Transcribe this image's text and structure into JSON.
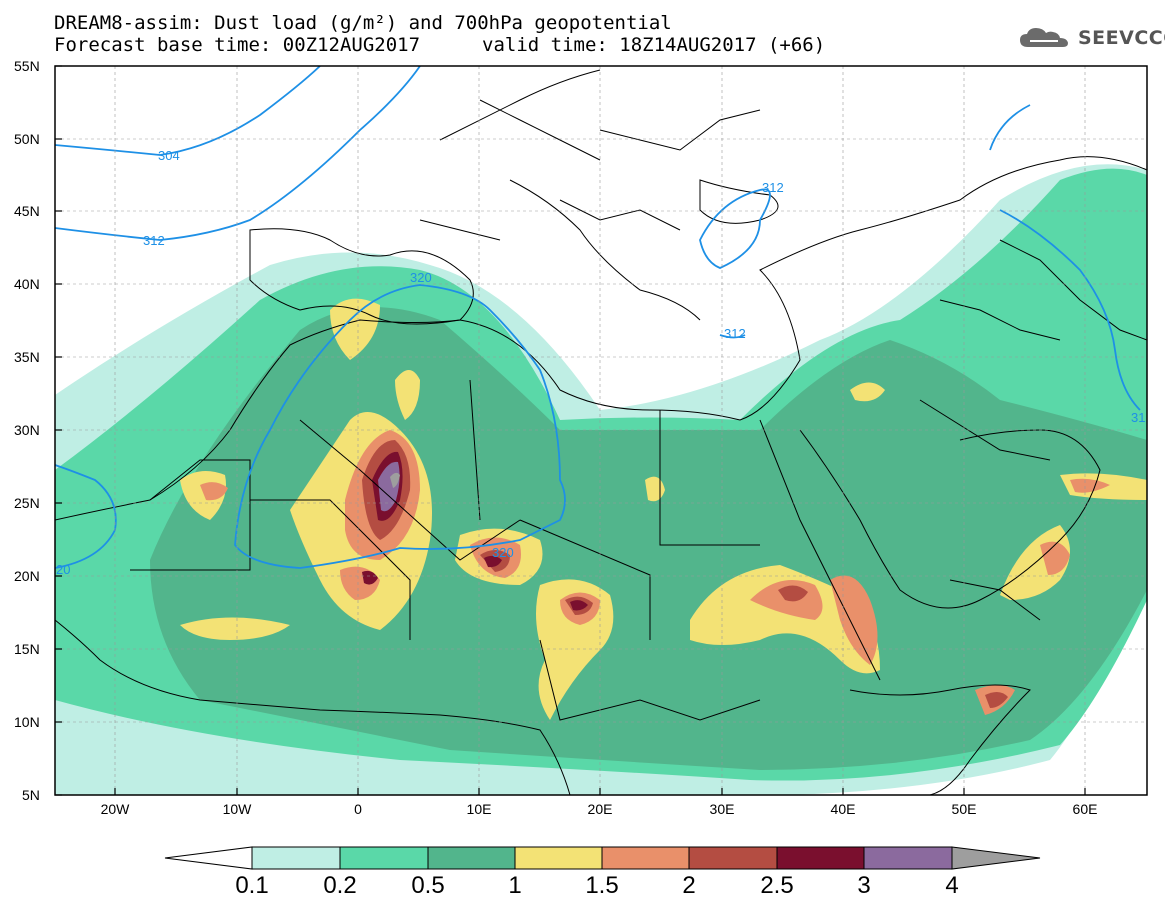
{
  "header": {
    "title_line1": "DREAM8-assim: Dust load (g/m²) and 700hPa geopotential",
    "title_line2_left": "Forecast base time: 00Z12AUG2017",
    "title_line2_right": "valid time: 18Z14AUG2017 (+66)",
    "logo_text": "SEEVCCC"
  },
  "map": {
    "lat_labels": [
      "55N",
      "50N",
      "45N",
      "40N",
      "35N",
      "30N",
      "25N",
      "20N",
      "15N",
      "10N",
      "5N"
    ],
    "lon_labels": [
      "20W",
      "10W",
      "0",
      "10E",
      "20E",
      "30E",
      "40E",
      "50E",
      "60E"
    ],
    "contours": [
      {
        "label": "304"
      },
      {
        "label": "312"
      },
      {
        "label": "312"
      },
      {
        "label": "320"
      },
      {
        "label": "320"
      },
      {
        "label": "312"
      },
      {
        "label": "20"
      },
      {
        "label": "31"
      }
    ]
  },
  "colorbar": {
    "labels": [
      "0.1",
      "0.2",
      "0.5",
      "1",
      "1.5",
      "2",
      "2.5",
      "3",
      "4"
    ],
    "colors": [
      "#bfeee4",
      "#5ad8a8",
      "#52b58c",
      "#f3e275",
      "#e9906a",
      "#b44d42",
      "#7a0f2e",
      "#8b6a9e",
      "#9e9e9e"
    ]
  },
  "colors": {
    "land_dust_1": "#bfeee4",
    "land_dust_2": "#5ad8a8",
    "land_dust_3": "#52b58c",
    "land_dust_4": "#f3e275",
    "land_dust_5": "#e9906a",
    "land_dust_6": "#b44d42",
    "land_dust_7": "#7a0f2e",
    "land_dust_8": "#8b6a9e",
    "geopotential_line": "#1e90e6"
  }
}
